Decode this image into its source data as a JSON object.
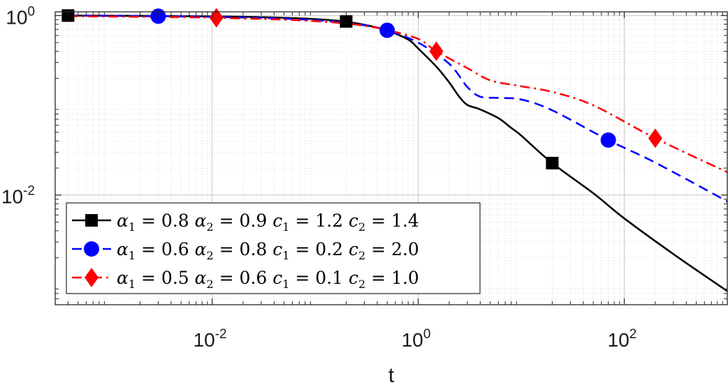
{
  "chart_data": {
    "type": "line",
    "xlabel": "t",
    "ylabel": "",
    "xscale": "log",
    "yscale": "log",
    "xlim": [
      0.0003,
      1000
    ],
    "ylim": [
      0.0006,
      1.1
    ],
    "xticks": [
      {
        "value": 0.01,
        "base": "10",
        "exp": "-2"
      },
      {
        "value": 1,
        "base": "10",
        "exp": "0"
      },
      {
        "value": 100,
        "base": "10",
        "exp": "2"
      }
    ],
    "yticks": [
      {
        "value": 0.01,
        "base": "10",
        "exp": "-2"
      },
      {
        "value": 1,
        "base": "10",
        "exp": "0"
      }
    ],
    "grid": true,
    "minor_grid": true,
    "legend_position": "bottom-left",
    "series": [
      {
        "alpha1": "0.8",
        "alpha2": "0.9",
        "c1": "1.2",
        "c2": "1.4",
        "color": "#000000",
        "linestyle": "solid",
        "marker": "square",
        "x": [
          0.0004,
          0.001,
          0.01,
          0.05,
          0.15,
          0.3,
          0.5,
          0.8,
          1,
          1.5,
          2,
          2.5,
          3,
          4,
          6,
          8,
          10,
          20,
          50,
          100,
          300,
          1000
        ],
        "y": [
          1.0,
          0.995,
          0.98,
          0.945,
          0.885,
          0.79,
          0.68,
          0.54,
          0.43,
          0.27,
          0.18,
          0.125,
          0.101,
          0.09,
          0.072,
          0.056,
          0.046,
          0.0227,
          0.0105,
          0.0055,
          0.0022,
          0.00085
        ],
        "marker_x": [
          0.0004,
          0.2,
          20
        ],
        "marker_y": [
          1.0,
          0.86,
          0.0227
        ]
      },
      {
        "alpha1": "0.6",
        "alpha2": "0.8",
        "c1": "0.2",
        "c2": "2.0",
        "color": "#0000ff",
        "linestyle": "dashed",
        "marker": "circle",
        "x": [
          0.0004,
          0.003,
          0.01,
          0.05,
          0.15,
          0.3,
          0.5,
          1,
          2,
          3,
          4,
          6,
          10,
          20,
          70,
          200,
          1000
        ],
        "y": [
          1.0,
          0.985,
          0.965,
          0.925,
          0.86,
          0.78,
          0.685,
          0.5,
          0.29,
          0.16,
          0.125,
          0.121,
          0.116,
          0.088,
          0.041,
          0.023,
          0.0085
        ],
        "marker_x": [
          0.003,
          0.5,
          70
        ],
        "marker_y": [
          0.985,
          0.685,
          0.041
        ]
      },
      {
        "alpha1": "0.5",
        "alpha2": "0.6",
        "c1": "0.1",
        "c2": "1.0",
        "color": "#ff0000",
        "linestyle": "dashdot",
        "marker": "diamond",
        "x": [
          0.0004,
          0.005,
          0.011,
          0.05,
          0.15,
          0.3,
          0.5,
          1,
          1.5,
          3,
          5,
          10,
          20,
          50,
          200,
          1000
        ],
        "y": [
          0.985,
          0.96,
          0.945,
          0.9,
          0.84,
          0.77,
          0.69,
          0.55,
          0.4,
          0.26,
          0.19,
          0.163,
          0.141,
          0.1,
          0.043,
          0.018
        ],
        "marker_x": [
          0.011,
          1.5,
          200
        ],
        "marker_y": [
          0.945,
          0.4,
          0.043
        ]
      }
    ]
  }
}
